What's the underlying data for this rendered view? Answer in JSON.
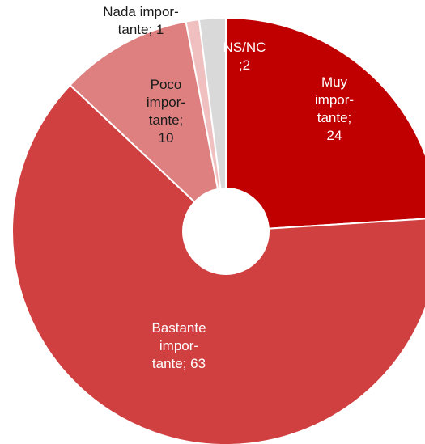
{
  "chart_data": {
    "type": "pie",
    "style": "donut",
    "start_angle_deg": 0,
    "direction": "clockwise",
    "slices": [
      {
        "label": "Muy importante",
        "value": 24,
        "color": "#c00000",
        "label_lines": [
          "Muy",
          "impor-",
          "tante;",
          "24"
        ],
        "label_color": "#ffffff"
      },
      {
        "label": "Bastante importante",
        "value": 63,
        "color": "#d04040",
        "label_lines": [
          "Bastante",
          "impor-",
          "tante; 63"
        ],
        "label_color": "#ffffff"
      },
      {
        "label": "Poco importante",
        "value": 10,
        "color": "#de8080",
        "label_lines": [
          "Poco",
          "impor-",
          "tante;",
          "10"
        ],
        "label_color": "#1a1a1a"
      },
      {
        "label": "Nada importante",
        "value": 1,
        "color": "#f0c0c0",
        "label_lines": [
          "Nada impor-",
          "tante; 1"
        ],
        "label_color": "#1a1a1a"
      },
      {
        "label": "NS/NC",
        "value": 2,
        "color": "#d9d9d9",
        "label_lines": [
          "NS/NC",
          ";2"
        ],
        "label_color": "#ffffff"
      }
    ],
    "legend": "none",
    "title": ""
  }
}
